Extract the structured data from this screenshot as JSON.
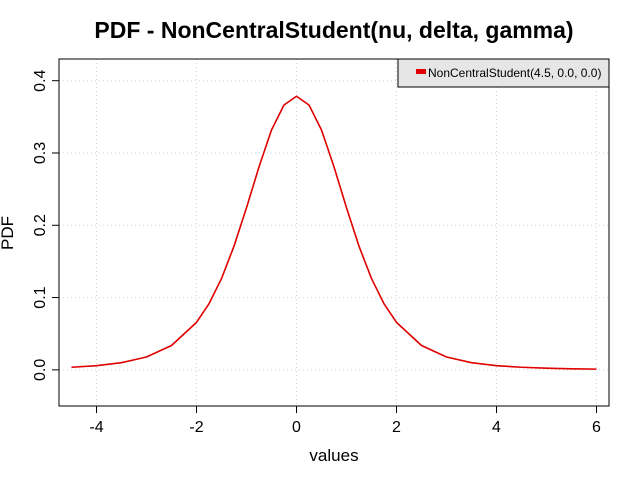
{
  "chart_data": {
    "type": "line",
    "title": "PDF - NonCentralStudent(nu, delta, gamma)",
    "xlabel": "values",
    "ylabel": "PDF",
    "xlim": [
      -4.75,
      6.25
    ],
    "ylim": [
      -0.05,
      0.43
    ],
    "xticks": [
      -4,
      -2,
      0,
      2,
      4,
      6
    ],
    "yticks": [
      0.0,
      0.1,
      0.2,
      0.3,
      0.4
    ],
    "grid": true,
    "legend_position": "top-right",
    "series": [
      {
        "name": "NonCentralStudent(4.5, 0.0, 0.0)",
        "color": "#e00000",
        "x": [
          -4.5,
          -4.0,
          -3.5,
          -3.0,
          -2.5,
          -2.0,
          -1.75,
          -1.5,
          -1.25,
          -1.0,
          -0.75,
          -0.5,
          -0.25,
          0.0,
          0.25,
          0.5,
          0.75,
          1.0,
          1.25,
          1.5,
          1.75,
          2.0,
          2.5,
          3.0,
          3.5,
          4.0,
          4.5,
          5.0,
          5.5,
          6.0
        ],
        "y": [
          0.0036,
          0.0058,
          0.0099,
          0.0178,
          0.0337,
          0.0657,
          0.0914,
          0.1263,
          0.1711,
          0.2242,
          0.2808,
          0.3318,
          0.3664,
          0.3785,
          0.3664,
          0.3318,
          0.2808,
          0.2242,
          0.1711,
          0.1263,
          0.0914,
          0.0657,
          0.0337,
          0.0178,
          0.0099,
          0.0058,
          0.0036,
          0.0023,
          0.0015,
          0.001
        ]
      }
    ]
  }
}
